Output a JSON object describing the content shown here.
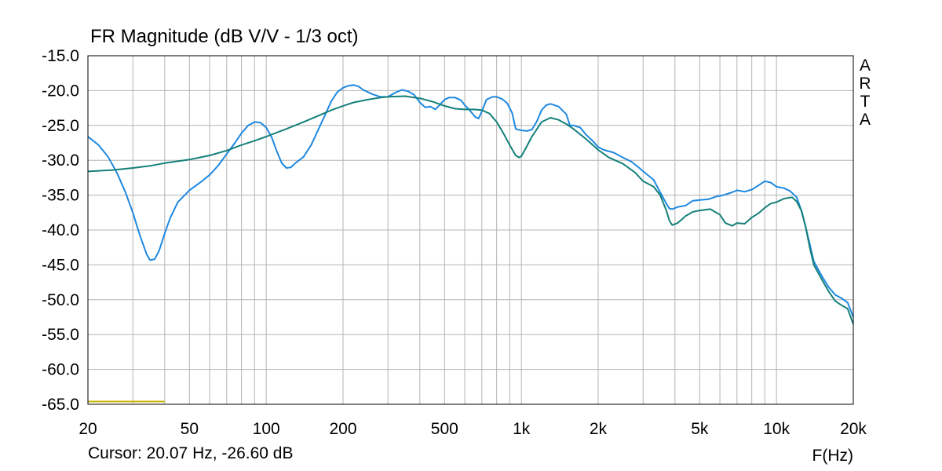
{
  "title": "FR Magnitude (dB V/V - 1/3 oct)",
  "brand": [
    "A",
    "R",
    "T",
    "A"
  ],
  "cursor_readout": "Cursor: 20.07 Hz, -26.60 dB",
  "colors": {
    "background": "#ffffff",
    "grid": "#b4b4b4",
    "axis": "#000000",
    "series_1": "#1e88e0",
    "series_2": "#15807a",
    "cursor_marker": "#c8b400"
  },
  "chart_data": {
    "type": "line",
    "title": "FR Magnitude (dB V/V - 1/3 oct)",
    "xlabel": "F(Hz)",
    "ylabel": "",
    "x_scale": "log",
    "xlim": [
      20,
      20000
    ],
    "ylim": [
      -65,
      -15
    ],
    "grid": true,
    "x_ticks": [
      20,
      50,
      100,
      200,
      500,
      1000,
      2000,
      5000,
      10000,
      20000
    ],
    "x_tick_labels": [
      "20",
      "50",
      "100",
      "200",
      "500",
      "1k",
      "2k",
      "5k",
      "10k",
      "20k"
    ],
    "y_ticks": [
      -15,
      -20,
      -25,
      -30,
      -35,
      -40,
      -45,
      -50,
      -55,
      -60,
      -65
    ],
    "y_tick_labels": [
      "-15.0",
      "-20.0",
      "-25.0",
      "-30.0",
      "-35.0",
      "-40.0",
      "-45.0",
      "-50.0",
      "-55.0",
      "-60.0",
      "-65.0"
    ],
    "cursor_marker": {
      "x": [
        20,
        40
      ],
      "y": -64.6
    },
    "series": [
      {
        "color": "#1e88e0",
        "points": [
          [
            20,
            -26.6
          ],
          [
            22,
            -27.8
          ],
          [
            24,
            -29.5
          ],
          [
            26,
            -31.8
          ],
          [
            28,
            -34.5
          ],
          [
            30,
            -37.5
          ],
          [
            32,
            -40.8
          ],
          [
            34,
            -43.5
          ],
          [
            35,
            -44.3
          ],
          [
            36.5,
            -44.2
          ],
          [
            38,
            -43.0
          ],
          [
            40,
            -40.5
          ],
          [
            42,
            -38.3
          ],
          [
            45,
            -36.0
          ],
          [
            50,
            -34.3
          ],
          [
            55,
            -33.2
          ],
          [
            60,
            -32.1
          ],
          [
            65,
            -30.7
          ],
          [
            70,
            -29.1
          ],
          [
            75,
            -27.6
          ],
          [
            80,
            -26.1
          ],
          [
            85,
            -25.0
          ],
          [
            90,
            -24.5
          ],
          [
            95,
            -24.6
          ],
          [
            100,
            -25.3
          ],
          [
            105,
            -26.7
          ],
          [
            110,
            -28.7
          ],
          [
            115,
            -30.4
          ],
          [
            120,
            -31.1
          ],
          [
            125,
            -31.0
          ],
          [
            130,
            -30.4
          ],
          [
            140,
            -29.5
          ],
          [
            150,
            -27.8
          ],
          [
            160,
            -25.6
          ],
          [
            170,
            -23.5
          ],
          [
            180,
            -21.5
          ],
          [
            190,
            -20.2
          ],
          [
            200,
            -19.6
          ],
          [
            210,
            -19.3
          ],
          [
            220,
            -19.2
          ],
          [
            230,
            -19.4
          ],
          [
            240,
            -19.9
          ],
          [
            260,
            -20.5
          ],
          [
            280,
            -20.9
          ],
          [
            300,
            -20.9
          ],
          [
            320,
            -20.3
          ],
          [
            340,
            -19.9
          ],
          [
            360,
            -20.1
          ],
          [
            380,
            -20.6
          ],
          [
            400,
            -21.7
          ],
          [
            420,
            -22.4
          ],
          [
            440,
            -22.3
          ],
          [
            460,
            -22.7
          ],
          [
            480,
            -22.0
          ],
          [
            500,
            -21.3
          ],
          [
            520,
            -21.0
          ],
          [
            550,
            -21.0
          ],
          [
            580,
            -21.4
          ],
          [
            600,
            -22.1
          ],
          [
            630,
            -22.9
          ],
          [
            660,
            -23.8
          ],
          [
            680,
            -24.0
          ],
          [
            700,
            -23.0
          ],
          [
            730,
            -21.3
          ],
          [
            770,
            -20.9
          ],
          [
            800,
            -20.9
          ],
          [
            840,
            -21.2
          ],
          [
            880,
            -21.8
          ],
          [
            920,
            -23.2
          ],
          [
            950,
            -25.5
          ],
          [
            970,
            -25.6
          ],
          [
            1000,
            -25.7
          ],
          [
            1050,
            -25.8
          ],
          [
            1100,
            -25.6
          ],
          [
            1150,
            -24.4
          ],
          [
            1200,
            -22.8
          ],
          [
            1250,
            -22.1
          ],
          [
            1300,
            -21.9
          ],
          [
            1400,
            -22.3
          ],
          [
            1500,
            -23.4
          ],
          [
            1550,
            -25.0
          ],
          [
            1600,
            -25.0
          ],
          [
            1700,
            -25.3
          ],
          [
            1800,
            -26.4
          ],
          [
            1900,
            -27.2
          ],
          [
            2000,
            -28.1
          ],
          [
            2100,
            -28.5
          ],
          [
            2300,
            -28.9
          ],
          [
            2500,
            -29.6
          ],
          [
            2700,
            -30.2
          ],
          [
            2900,
            -31.1
          ],
          [
            3100,
            -32.0
          ],
          [
            3300,
            -32.8
          ],
          [
            3500,
            -34.6
          ],
          [
            3700,
            -36.2
          ],
          [
            3800,
            -36.9
          ],
          [
            3900,
            -37.0
          ],
          [
            4100,
            -36.7
          ],
          [
            4400,
            -36.5
          ],
          [
            4700,
            -35.8
          ],
          [
            5000,
            -35.7
          ],
          [
            5400,
            -35.6
          ],
          [
            5800,
            -35.2
          ],
          [
            6200,
            -35.0
          ],
          [
            6700,
            -34.6
          ],
          [
            7000,
            -34.3
          ],
          [
            7500,
            -34.5
          ],
          [
            8000,
            -34.2
          ],
          [
            8500,
            -33.6
          ],
          [
            9000,
            -33.0
          ],
          [
            9500,
            -33.2
          ],
          [
            10000,
            -33.8
          ],
          [
            10700,
            -34.0
          ],
          [
            11300,
            -34.4
          ],
          [
            12000,
            -35.3
          ],
          [
            12600,
            -37.5
          ],
          [
            13000,
            -39.5
          ],
          [
            13500,
            -42.0
          ],
          [
            14000,
            -44.5
          ],
          [
            15000,
            -46.5
          ],
          [
            16000,
            -48.2
          ],
          [
            17000,
            -49.3
          ],
          [
            18000,
            -49.8
          ],
          [
            19000,
            -50.4
          ],
          [
            20000,
            -52.5
          ]
        ]
      },
      {
        "color": "#15807a",
        "points": [
          [
            20,
            -31.6
          ],
          [
            25,
            -31.4
          ],
          [
            30,
            -31.1
          ],
          [
            35,
            -30.8
          ],
          [
            40,
            -30.4
          ],
          [
            50,
            -29.9
          ],
          [
            60,
            -29.3
          ],
          [
            70,
            -28.6
          ],
          [
            80,
            -27.8
          ],
          [
            90,
            -27.2
          ],
          [
            100,
            -26.6
          ],
          [
            120,
            -25.5
          ],
          [
            140,
            -24.5
          ],
          [
            160,
            -23.6
          ],
          [
            180,
            -22.8
          ],
          [
            200,
            -22.2
          ],
          [
            220,
            -21.7
          ],
          [
            250,
            -21.3
          ],
          [
            280,
            -21.0
          ],
          [
            300,
            -20.9
          ],
          [
            350,
            -20.8
          ],
          [
            400,
            -21.1
          ],
          [
            450,
            -21.6
          ],
          [
            500,
            -22.2
          ],
          [
            550,
            -22.6
          ],
          [
            600,
            -22.7
          ],
          [
            650,
            -22.7
          ],
          [
            700,
            -22.8
          ],
          [
            750,
            -23.3
          ],
          [
            800,
            -24.5
          ],
          [
            850,
            -26.1
          ],
          [
            900,
            -27.8
          ],
          [
            950,
            -29.3
          ],
          [
            980,
            -29.6
          ],
          [
            1000,
            -29.4
          ],
          [
            1050,
            -28.0
          ],
          [
            1100,
            -26.6
          ],
          [
            1200,
            -24.5
          ],
          [
            1300,
            -23.9
          ],
          [
            1400,
            -24.2
          ],
          [
            1500,
            -24.8
          ],
          [
            1600,
            -25.5
          ],
          [
            1800,
            -27.0
          ],
          [
            2000,
            -28.5
          ],
          [
            2200,
            -29.6
          ],
          [
            2500,
            -30.5
          ],
          [
            2800,
            -31.8
          ],
          [
            3000,
            -33.0
          ],
          [
            3300,
            -33.8
          ],
          [
            3500,
            -35.0
          ],
          [
            3700,
            -37.2
          ],
          [
            3800,
            -38.6
          ],
          [
            3900,
            -39.3
          ],
          [
            4100,
            -39.0
          ],
          [
            4400,
            -38.0
          ],
          [
            4700,
            -37.4
          ],
          [
            5000,
            -37.2
          ],
          [
            5500,
            -37.0
          ],
          [
            6000,
            -37.8
          ],
          [
            6300,
            -39.0
          ],
          [
            6700,
            -39.4
          ],
          [
            7000,
            -39.0
          ],
          [
            7500,
            -39.1
          ],
          [
            8000,
            -38.2
          ],
          [
            8500,
            -37.6
          ],
          [
            9000,
            -36.8
          ],
          [
            9500,
            -36.2
          ],
          [
            10000,
            -36.0
          ],
          [
            10700,
            -35.5
          ],
          [
            11500,
            -35.3
          ],
          [
            12000,
            -35.9
          ],
          [
            12500,
            -37.2
          ],
          [
            13000,
            -39.5
          ],
          [
            13500,
            -42.5
          ],
          [
            14000,
            -45.0
          ],
          [
            15000,
            -47.0
          ],
          [
            16000,
            -48.8
          ],
          [
            17000,
            -50.2
          ],
          [
            18000,
            -50.8
          ],
          [
            19000,
            -51.3
          ],
          [
            20000,
            -53.5
          ]
        ]
      }
    ]
  }
}
